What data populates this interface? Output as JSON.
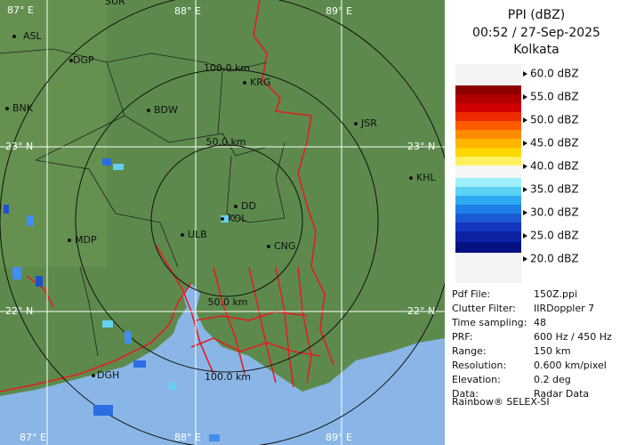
{
  "header": {
    "title": "PPI (dBZ)",
    "time": "00:52 / 27-Sep-2025",
    "location": "Kolkata"
  },
  "legend": {
    "labels": [
      "60.0 dBZ",
      "55.0 dBZ",
      "50.0 dBZ",
      "45.0 dBZ",
      "40.0 dBZ",
      "35.0 dBZ",
      "30.0 dBZ",
      "25.0 dBZ",
      "20.0 dBZ"
    ]
  },
  "info": {
    "rows": [
      [
        "Pdf File:",
        "150Z.ppi"
      ],
      [
        "Clutter Filter:",
        "IIRDoppler 7"
      ],
      [
        "Time sampling:",
        "48"
      ],
      [
        "PRF:",
        "600 Hz / 450 Hz"
      ],
      [
        "Range:",
        "150 km"
      ],
      [
        "Resolution:",
        "0.600 km/pixel"
      ],
      [
        "Elevation:",
        "0.2 deg"
      ],
      [
        "Data:",
        "Radar Data"
      ]
    ],
    "footer": "Rainbow® SELEX-SI"
  },
  "map": {
    "grid_labels": {
      "top": [
        "87° E",
        "88° E",
        "89° E"
      ],
      "bottom": [
        "87° E",
        "88° E",
        "89° E"
      ],
      "left": [
        "23° N",
        "22° N"
      ],
      "right": [
        "23° N",
        "22° N"
      ]
    },
    "ring_labels": [
      "100.0 km",
      "50.0 km",
      "50.0 km",
      "100.0 km"
    ],
    "places": [
      "SUR",
      "ASL",
      "DGP",
      "BNK",
      "BDW",
      "KRG",
      "JSR",
      "KHL",
      "DD",
      "KOL",
      "ULB",
      "MDP",
      "CNG",
      "DGH"
    ]
  }
}
